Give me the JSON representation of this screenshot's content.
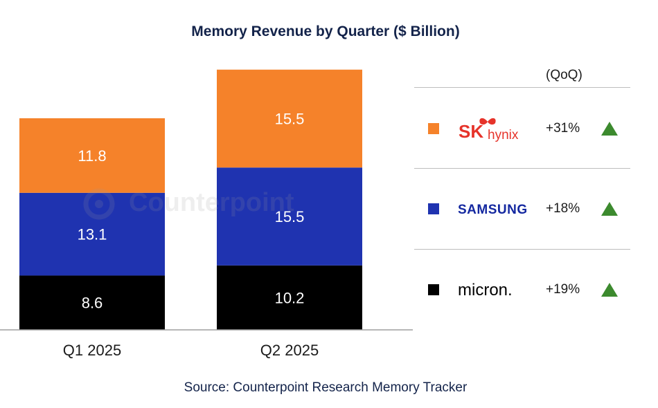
{
  "chart_data": {
    "type": "bar",
    "stacked": true,
    "title": "Memory Revenue by Quarter ($ Billion)",
    "categories": [
      "Q1 2025",
      "Q2 2025"
    ],
    "series": [
      {
        "name": "Micron",
        "values": [
          8.6,
          10.2
        ],
        "color": "#000000",
        "label_color": "#ffffff"
      },
      {
        "name": "Samsung",
        "values": [
          13.1,
          15.5
        ],
        "color": "#1f33b0",
        "label_color": "#ffffff"
      },
      {
        "name": "SK hynix",
        "values": [
          11.8,
          15.5
        ],
        "color": "#f5822a",
        "label_color": "#ffffff"
      }
    ],
    "xlabel": "",
    "ylabel": "",
    "ylim": [
      0,
      45
    ],
    "grid": false,
    "legend_position": "right"
  },
  "legend": {
    "header": "(QoQ)",
    "items": [
      {
        "logo_text_1": "SK",
        "logo_text_2": "hynix",
        "change": "+31%",
        "color": "#f5822a",
        "trend": "up"
      },
      {
        "logo_text": "SAMSUNG",
        "change": "+18%",
        "color": "#1f33b0",
        "trend": "up"
      },
      {
        "logo_text": "micron.",
        "change": "+19%",
        "color": "#000000",
        "trend": "up"
      }
    ]
  },
  "watermark": "Counterpoint",
  "source": "Source: Counterpoint Research Memory Tracker",
  "colors": {
    "title": "#13234a",
    "trend_up": "#3c8a2e"
  }
}
